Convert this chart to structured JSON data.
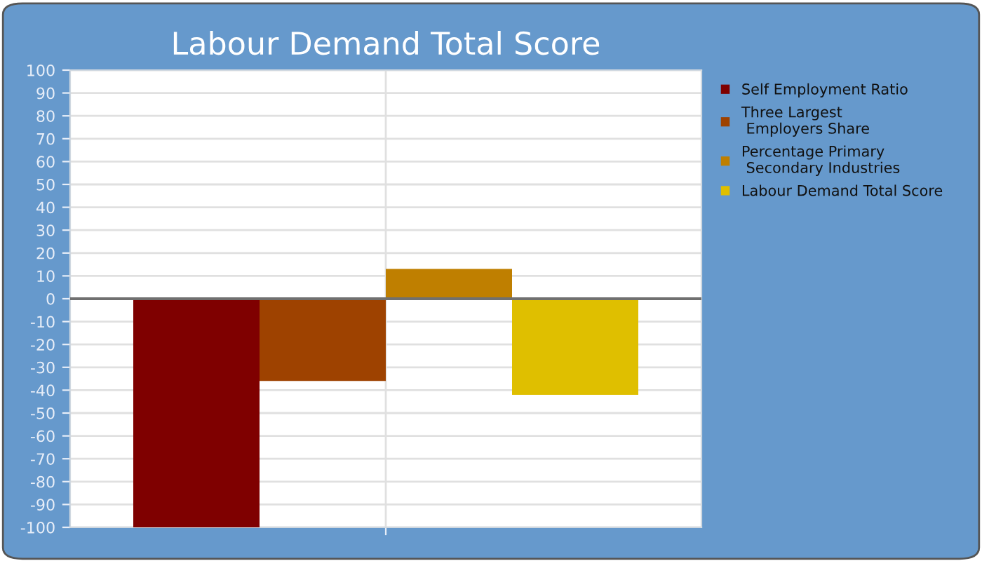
{
  "chart_data": {
    "type": "bar",
    "title": "Labour Demand Total Score",
    "categories": [
      null
    ],
    "series": [
      {
        "name": "Self Employment Ratio",
        "color": "#7f0000",
        "values": [
          -100
        ]
      },
      {
        "name": "Three Largest\n Employers Share",
        "color": "#9e4200",
        "values": [
          -36
        ]
      },
      {
        "name": "Percentage Primary\n Secondary Industries",
        "color": "#bf7f00",
        "values": [
          13
        ]
      },
      {
        "name": "Labour Demand Total Score",
        "color": "#dfbf00",
        "values": [
          -42
        ]
      }
    ],
    "ylim": [
      -100,
      100
    ],
    "yticks": [
      -100,
      -90,
      -80,
      -70,
      -60,
      -50,
      -40,
      -30,
      -20,
      -10,
      0,
      10,
      20,
      30,
      40,
      50,
      60,
      70,
      80,
      90,
      100
    ],
    "grid": true,
    "legend": "right"
  }
}
